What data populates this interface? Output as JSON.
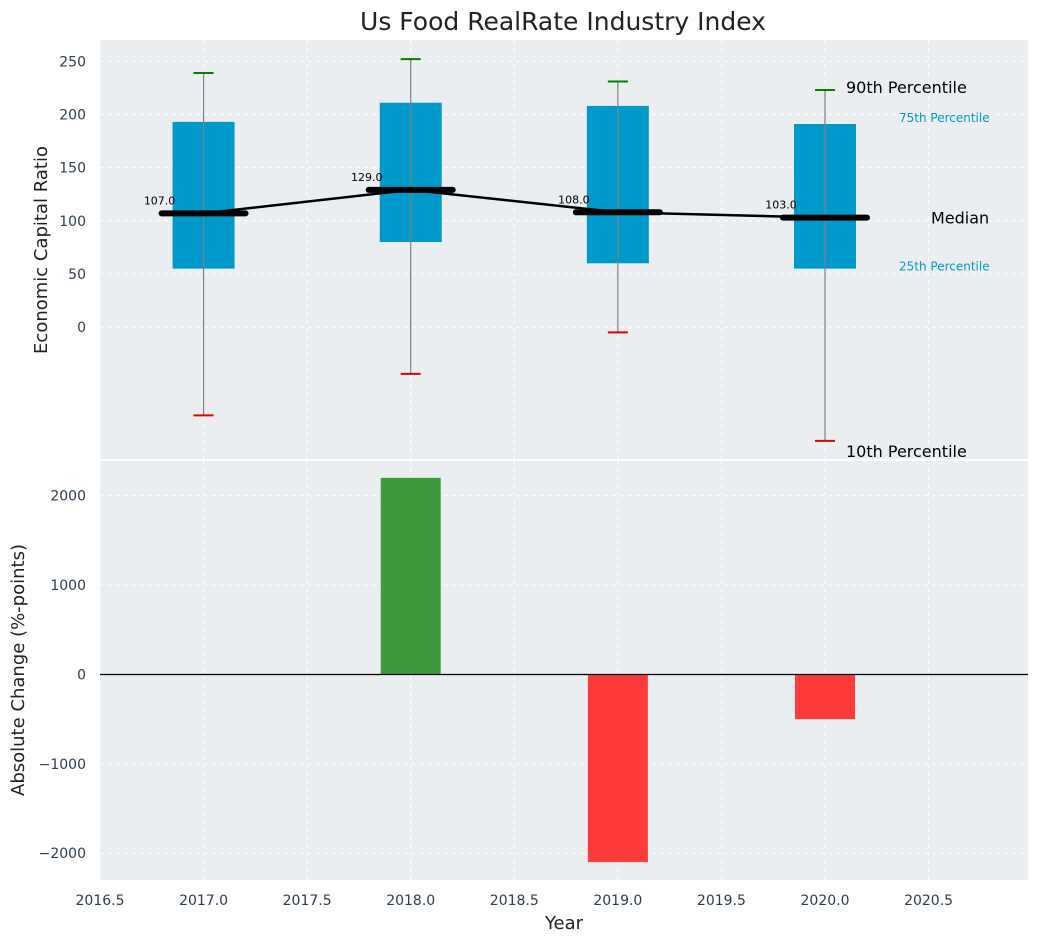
{
  "chart_data": [
    {
      "type": "box",
      "title": "Us Food RealRate Industry Index",
      "ylabel": "Economic Capital Ratio",
      "xlabel": "",
      "ylim": [
        -125,
        270
      ],
      "yticks": [
        0,
        50,
        100,
        150,
        200,
        250
      ],
      "grid": true,
      "x": [
        2017,
        2018,
        2019,
        2020
      ],
      "p10": [
        -83,
        -44,
        -5,
        -107
      ],
      "p25": [
        55,
        80,
        60,
        55
      ],
      "median": [
        107,
        129,
        108,
        103
      ],
      "p75": [
        193,
        211,
        208,
        191
      ],
      "p90": [
        239,
        252,
        231,
        223
      ],
      "median_labels": [
        "107.0",
        "129.0",
        "108.0",
        "103.0"
      ],
      "legend_labels": {
        "p90": "90th Percentile",
        "p75": "75th Percentile",
        "median": "Median",
        "p25": "25th Percentile",
        "p10": "10th Percentile"
      },
      "colors": {
        "box": "#0099cc",
        "median": "#000000",
        "p90_cap": "#008000",
        "p10_cap": "#e00000",
        "whisker": "#808080"
      }
    },
    {
      "type": "bar",
      "ylabel": "Absolute Change (%-points)",
      "xlabel": "Year",
      "ylim": [
        -2300,
        2400
      ],
      "xlim": [
        2016.5,
        2020.98
      ],
      "yticks": [
        -2000,
        -1000,
        0,
        1000,
        2000
      ],
      "ytick_labels": [
        "−2000",
        "−1000",
        "0",
        "1000",
        "2000"
      ],
      "xticks": [
        2016.5,
        2017.0,
        2017.5,
        2018.0,
        2018.5,
        2019.0,
        2019.5,
        2020.0,
        2020.5
      ],
      "xtick_labels": [
        "2016.5",
        "2017.0",
        "2017.5",
        "2018.0",
        "2018.5",
        "2019.0",
        "2019.5",
        "2020.0",
        "2020.5"
      ],
      "grid": true,
      "x": [
        2018,
        2019,
        2020
      ],
      "values": [
        2200,
        -2100,
        -500
      ],
      "colors": {
        "positive": "#3d9b3d",
        "negative": "#ff3b3b",
        "zero_line": "#000000"
      }
    }
  ],
  "colors": {
    "plot_bg": "#eaeef0",
    "grid": "#ffffff",
    "tick_text": "#2e3d4f"
  }
}
